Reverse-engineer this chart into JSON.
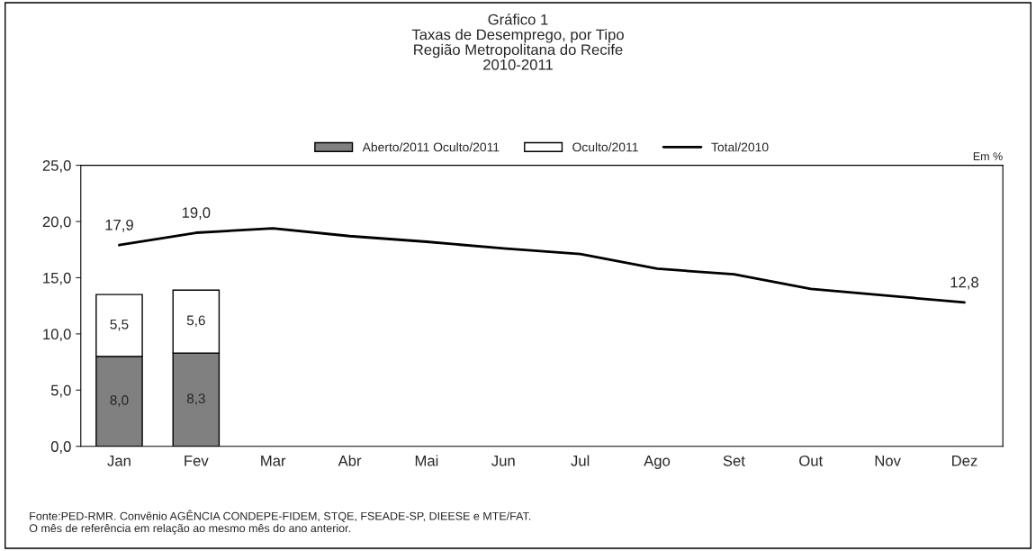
{
  "chart_data": {
    "type": "bar",
    "title": "Gráfico 1\nTaxas de Desemprego, por Tipo\nRegião Metropolitana do Recife\n2010-2011",
    "categories": [
      "Jan",
      "Fev",
      "Mar",
      "Abr",
      "Mai",
      "Jun",
      "Jul",
      "Ago",
      "Set",
      "Out",
      "Nov",
      "Dez"
    ],
    "stacked": true,
    "ylim": [
      0,
      25
    ],
    "yticks": [
      {
        "value": 0,
        "label": "0,0"
      },
      {
        "value": 5,
        "label": "5,0"
      },
      {
        "value": 10,
        "label": "10,0"
      },
      {
        "value": 15,
        "label": "15,0"
      },
      {
        "value": 20,
        "label": "20,0"
      },
      {
        "value": 25,
        "label": "25,0"
      }
    ],
    "grid": false,
    "legend": "top",
    "series": [
      {
        "name": "Aberto/2011 Oculto/2011",
        "color": "#808080",
        "values": [
          8.0,
          8.3,
          null,
          null,
          null,
          null,
          null,
          null,
          null,
          null,
          null,
          null
        ],
        "value_labels": [
          "8,0",
          "8,3",
          null,
          null,
          null,
          null,
          null,
          null,
          null,
          null,
          null,
          null
        ]
      },
      {
        "name": "Oculto/2011",
        "color": "#ffffff",
        "values": [
          5.5,
          5.6,
          null,
          null,
          null,
          null,
          null,
          null,
          null,
          null,
          null,
          null
        ],
        "value_labels": [
          "5,5",
          "5,6",
          null,
          null,
          null,
          null,
          null,
          null,
          null,
          null,
          null,
          null
        ]
      },
      {
        "name": "Total/2010",
        "type": "line",
        "color": "#000000",
        "values": [
          17.9,
          19.0,
          19.4,
          18.7,
          18.2,
          17.6,
          17.1,
          15.8,
          15.3,
          14.0,
          13.4,
          12.8
        ],
        "value_labels": [
          "17,9",
          "19,0",
          null,
          null,
          null,
          null,
          null,
          null,
          null,
          null,
          null,
          "12,8"
        ]
      }
    ],
    "annotations": [
      "Em %",
      "Fonte:PED-RMR. Convênio AGÊNCIA CONDEPE-FIDEM, STQE, FSEADE-SP, DIEESE e MTE/FAT.\nO mês de referência em relação ao mesmo mês do ano anterior."
    ]
  }
}
